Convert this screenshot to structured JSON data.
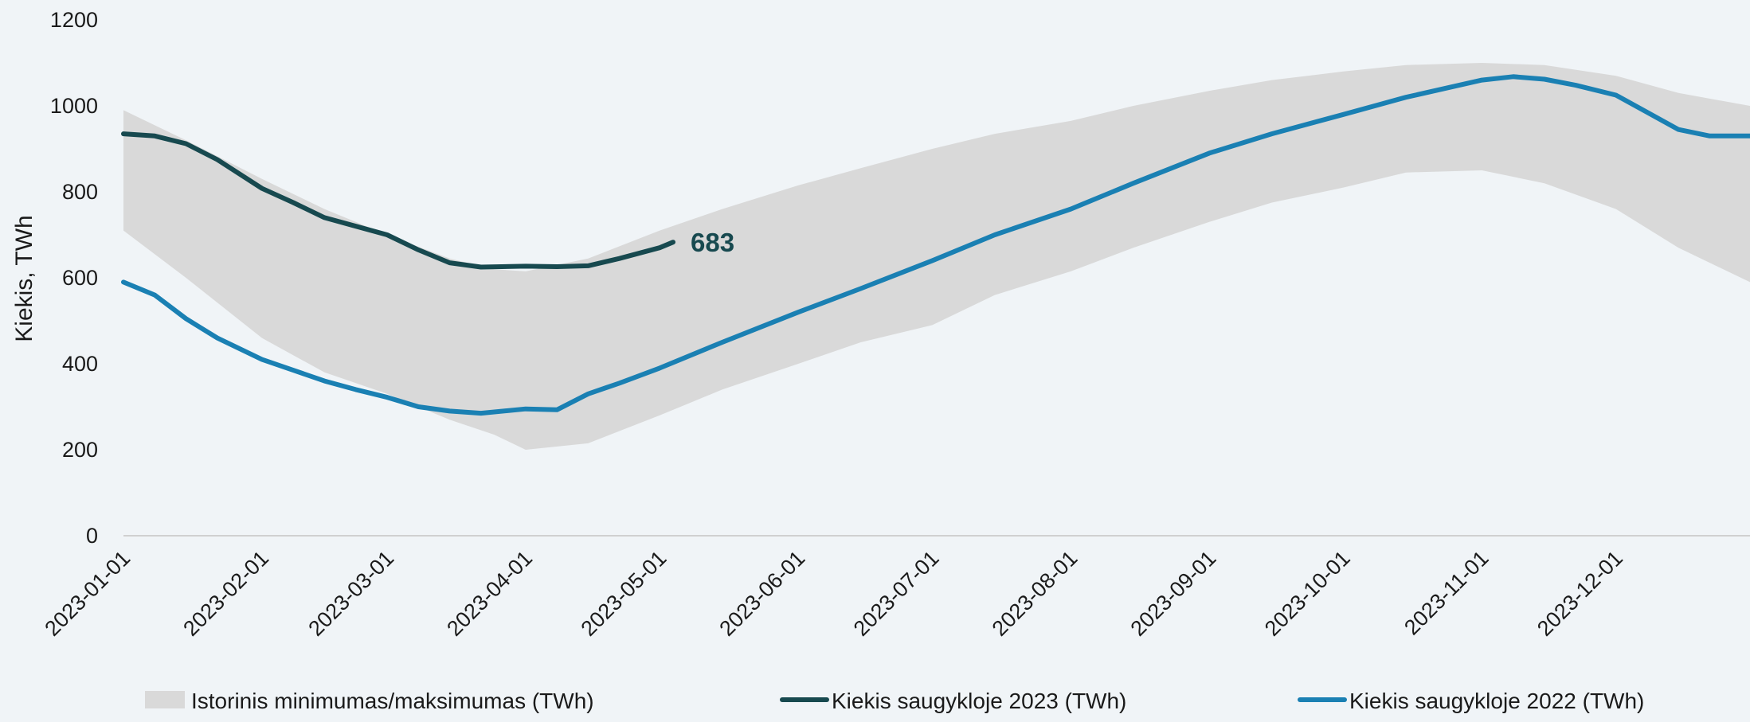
{
  "chart_data": {
    "type": "line",
    "ylabel": "Kiekis, TWh",
    "xlabel": "",
    "ylim": [
      0,
      1200
    ],
    "xlim": [
      "2023-01-01",
      "2023-12-31"
    ],
    "y_ticks": [
      "0",
      "200",
      "400",
      "600",
      "800",
      "1000",
      "1200"
    ],
    "x_ticks": [
      "2023-01-01",
      "2023-02-01",
      "2023-03-01",
      "2023-04-01",
      "2023-05-01",
      "2023-06-01",
      "2023-07-01",
      "2023-08-01",
      "2023-09-01",
      "2023-10-01",
      "2023-11-01",
      "2023-12-01"
    ],
    "grid": false,
    "legend_position": "bottom",
    "band": {
      "name": "Istorinis minimumas/maksimumas (TWh)",
      "color": "#d9d9d9",
      "x": [
        "2023-01-01",
        "2023-01-15",
        "2023-02-01",
        "2023-02-15",
        "2023-03-01",
        "2023-03-15",
        "2023-03-25",
        "2023-04-01",
        "2023-04-15",
        "2023-05-01",
        "2023-05-15",
        "2023-06-01",
        "2023-06-15",
        "2023-07-01",
        "2023-07-15",
        "2023-08-01",
        "2023-08-15",
        "2023-09-01",
        "2023-09-15",
        "2023-10-01",
        "2023-10-15",
        "2023-11-01",
        "2023-11-15",
        "2023-12-01",
        "2023-12-15",
        "2023-12-31"
      ],
      "max": [
        990,
        920,
        830,
        760,
        700,
        645,
        620,
        615,
        645,
        710,
        760,
        815,
        855,
        900,
        935,
        965,
        1000,
        1035,
        1060,
        1080,
        1095,
        1100,
        1095,
        1070,
        1030,
        1000
      ],
      "min": [
        710,
        600,
        460,
        380,
        330,
        270,
        235,
        200,
        215,
        280,
        340,
        400,
        450,
        490,
        560,
        615,
        670,
        730,
        775,
        810,
        845,
        850,
        820,
        760,
        670,
        590
      ]
    },
    "series": [
      {
        "name": "Kiekis saugykloje 2023 (TWh)",
        "color": "#17494f",
        "x": [
          "2023-01-01",
          "2023-01-08",
          "2023-01-15",
          "2023-01-22",
          "2023-02-01",
          "2023-02-08",
          "2023-02-15",
          "2023-02-22",
          "2023-03-01",
          "2023-03-08",
          "2023-03-15",
          "2023-03-22",
          "2023-04-01",
          "2023-04-08",
          "2023-04-15",
          "2023-04-22",
          "2023-05-01",
          "2023-05-04"
        ],
        "values": [
          935,
          930,
          912,
          875,
          808,
          775,
          740,
          720,
          700,
          665,
          635,
          625,
          627,
          626,
          628,
          645,
          670,
          683
        ]
      },
      {
        "name": "Kiekis saugykloje 2022 (TWh)",
        "color": "#1a80b3",
        "x": [
          "2023-01-01",
          "2023-01-08",
          "2023-01-15",
          "2023-01-22",
          "2023-02-01",
          "2023-02-08",
          "2023-02-15",
          "2023-02-22",
          "2023-03-01",
          "2023-03-08",
          "2023-03-15",
          "2023-03-22",
          "2023-04-01",
          "2023-04-08",
          "2023-04-15",
          "2023-04-22",
          "2023-05-01",
          "2023-05-15",
          "2023-06-01",
          "2023-06-15",
          "2023-07-01",
          "2023-07-15",
          "2023-08-01",
          "2023-08-15",
          "2023-09-01",
          "2023-09-15",
          "2023-10-01",
          "2023-10-15",
          "2023-11-01",
          "2023-11-08",
          "2023-11-15",
          "2023-11-22",
          "2023-12-01",
          "2023-12-08",
          "2023-12-15",
          "2023-12-22",
          "2023-12-31"
        ],
        "values": [
          590,
          560,
          505,
          460,
          410,
          385,
          360,
          340,
          322,
          300,
          290,
          285,
          295,
          293,
          330,
          355,
          390,
          450,
          520,
          575,
          640,
          700,
          760,
          820,
          890,
          935,
          980,
          1020,
          1060,
          1068,
          1062,
          1048,
          1025,
          985,
          945,
          930,
          930
        ]
      }
    ],
    "annotations": [
      {
        "series": "Kiekis saugykloje 2023 (TWh)",
        "x": "2023-05-04",
        "label": "683"
      }
    ]
  }
}
